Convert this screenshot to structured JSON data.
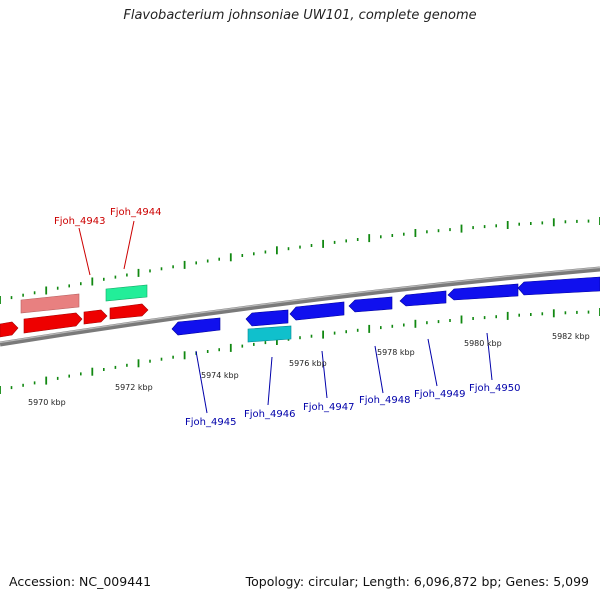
{
  "title": "Flavobacterium johnsoniae UW101, complete genome",
  "accession": "Accession: NC_009441",
  "summary": "Topology: circular; Length: 6,096,872 bp; Genes: 5,099",
  "colors": {
    "forward_gene": "#ee0000",
    "forward_pseudo": "#e88080",
    "forward_rna": "#22ee99",
    "reverse_gene": "#1010ee",
    "reverse_rna": "#10c0cc",
    "backbone": "#7a7a7a",
    "tick": "#118811",
    "forward_label": "#cc0000",
    "reverse_label": "#0000aa"
  },
  "kbp_labels": [
    "5970 kbp",
    "5972 kbp",
    "5974 kbp",
    "5976 kbp",
    "5978 kbp",
    "5980 kbp",
    "5982 kbp"
  ],
  "forward_gene_labels": [
    "Fjoh_4943",
    "Fjoh_4944"
  ],
  "reverse_gene_labels": [
    "Fjoh_4945",
    "Fjoh_4946",
    "Fjoh_4947",
    "Fjoh_4948",
    "Fjoh_4949",
    "Fjoh_4950"
  ]
}
